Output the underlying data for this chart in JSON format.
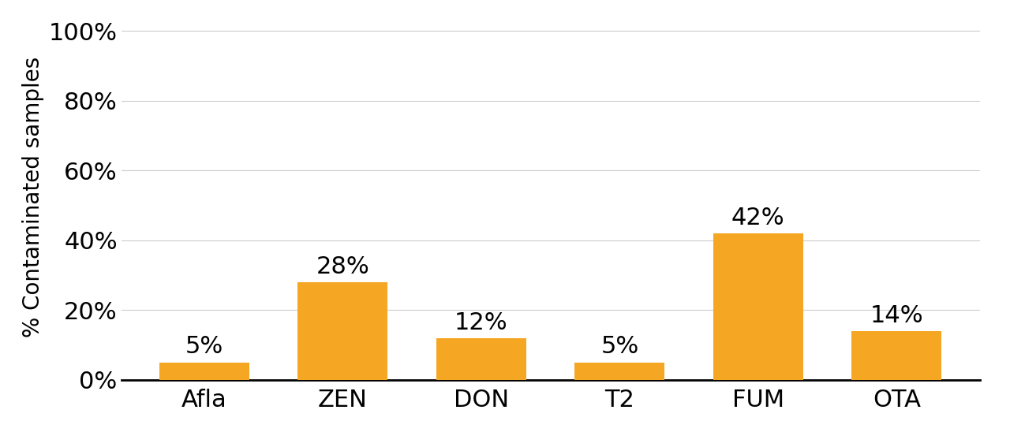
{
  "categories": [
    "Afla",
    "ZEN",
    "DON",
    "T2",
    "FUM",
    "OTA"
  ],
  "values": [
    5,
    28,
    12,
    5,
    42,
    14
  ],
  "bar_color": "#F5A623",
  "ylabel": "% Contaminated samples",
  "ylim": [
    0,
    100
  ],
  "yticks": [
    0,
    20,
    40,
    60,
    80,
    100
  ],
  "ytick_labels": [
    "0%",
    "20%",
    "40%",
    "60%",
    "80%",
    "100%"
  ],
  "bar_width": 0.65,
  "tick_fontsize": 22,
  "ylabel_fontsize": 20,
  "annotation_fontsize": 22,
  "background_color": "#ffffff",
  "grid_color": "#cccccc"
}
